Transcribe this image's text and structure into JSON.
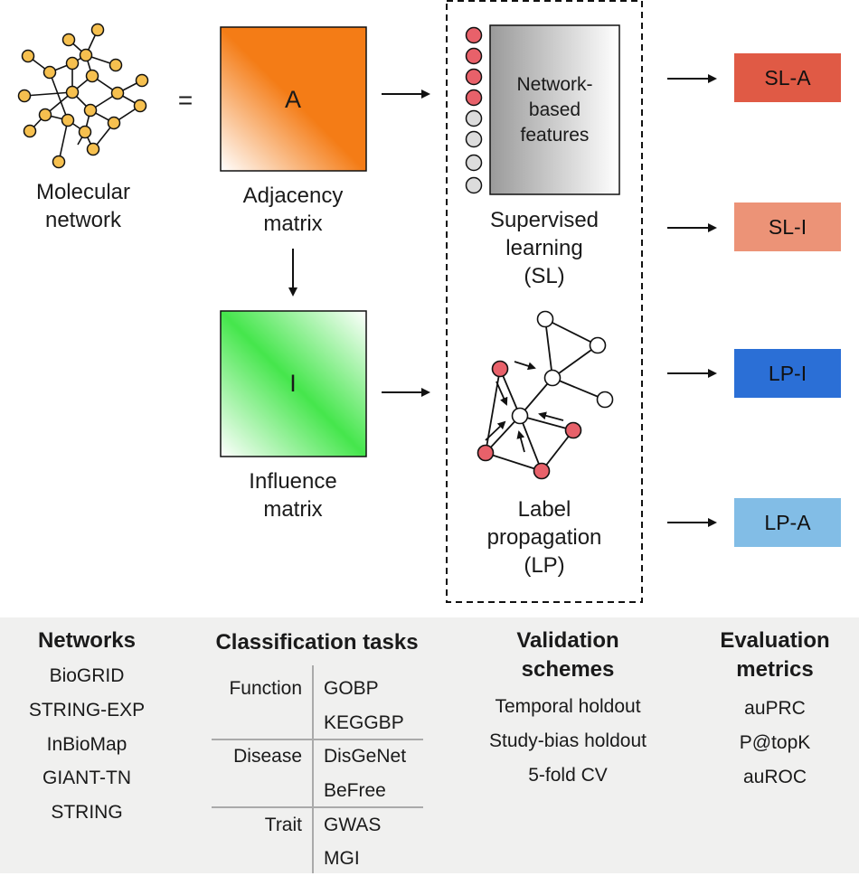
{
  "top": {
    "molecular_network": "Molecular\nnetwork",
    "equals": "=",
    "adjacency_letter": "A",
    "adjacency_label": "Adjacency\nmatrix",
    "influence_letter": "I",
    "influence_label": "Influence\nmatrix",
    "features_label": "Network-\nbased\nfeatures",
    "supervised_label": "Supervised\nlearning\n(SL)",
    "label_prop_label": "Label\npropagation\n(LP)"
  },
  "outputs": [
    {
      "label": "SL-A",
      "color": "#e05a45"
    },
    {
      "label": "SL-I",
      "color": "#ec9377"
    },
    {
      "label": "LP-I",
      "color": "#2b6fd6"
    },
    {
      "label": "LP-A",
      "color": "#82bde6"
    }
  ],
  "colors": {
    "node_yellow": "#f6c04f",
    "node_red": "#e8616a",
    "node_grey": "#dcdcdc",
    "adjacency_orange": "#f47c16",
    "influence_green": "#45e64c",
    "bottom_panel": "#f0f0ef"
  },
  "bottom": {
    "networks": {
      "title": "Networks",
      "items": [
        "BioGRID",
        "STRING-EXP",
        "InBioMap",
        "GIANT-TN",
        "STRING"
      ]
    },
    "classification": {
      "title": "Classification tasks",
      "groups": [
        {
          "category": "Function",
          "items": [
            "GOBP",
            "KEGGBP"
          ]
        },
        {
          "category": "Disease",
          "items": [
            "DisGeNet",
            "BeFree"
          ]
        },
        {
          "category": "Trait",
          "items": [
            "GWAS",
            "MGI"
          ]
        }
      ]
    },
    "validation": {
      "title": "Validation\nschemes",
      "items": [
        "Temporal holdout",
        "Study-bias holdout",
        "5-fold CV"
      ]
    },
    "evaluation": {
      "title": "Evaluation\nmetrics",
      "items": [
        "auPRC",
        "P@topK",
        "auROC"
      ]
    }
  }
}
